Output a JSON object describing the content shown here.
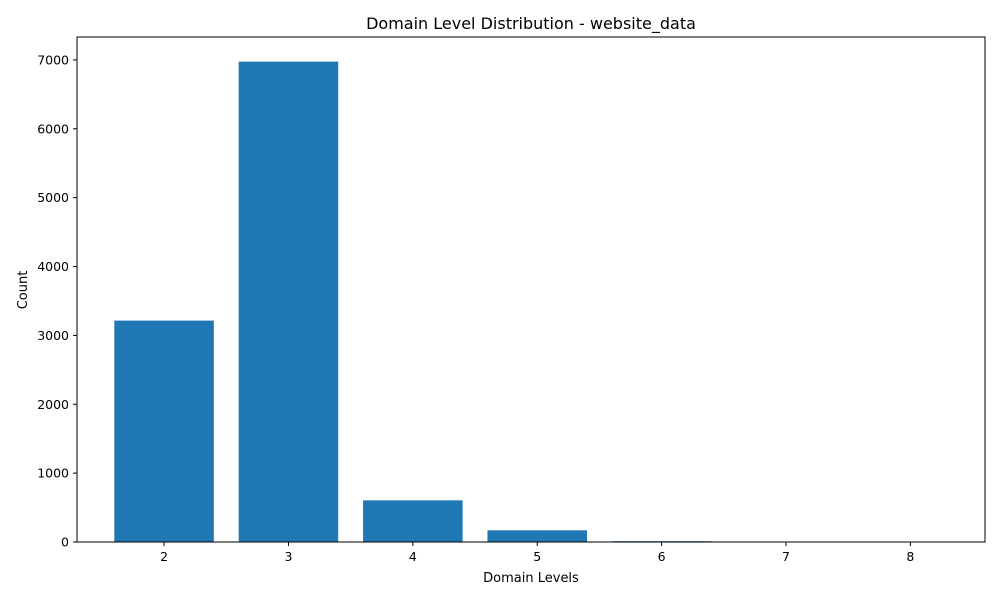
{
  "chart_data": {
    "type": "bar",
    "title": "Domain Level Distribution - website_data",
    "xlabel": "Domain Levels",
    "ylabel": "Count",
    "categories": [
      "2",
      "3",
      "4",
      "5",
      "6",
      "7",
      "8"
    ],
    "values": [
      3215,
      6975,
      605,
      170,
      12,
      3,
      1
    ],
    "ylim": [
      0,
      7333
    ],
    "yticks": [
      "0",
      "1000",
      "2000",
      "3000",
      "4000",
      "5000",
      "6000",
      "7000"
    ],
    "xlim": [
      1.3,
      8.6
    ],
    "grid": false,
    "bar_color": "#1f77b4"
  }
}
